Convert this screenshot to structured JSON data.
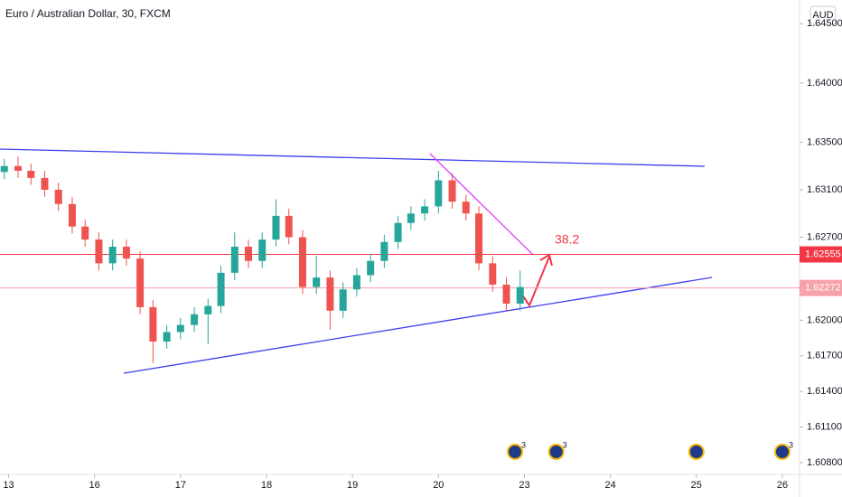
{
  "chart_data": {
    "type": "candlestick",
    "title": "Euro / Australian Dollar, 30, FXCM",
    "currency": "AUD",
    "x": [
      -0.05,
      0.11,
      0.26,
      0.42,
      0.58,
      0.74,
      0.89,
      1.05,
      1.21,
      1.37,
      1.53,
      1.68,
      1.84,
      2.0,
      2.16,
      2.32,
      2.47,
      2.63,
      2.79,
      2.95,
      3.11,
      3.26,
      3.42,
      3.58,
      3.74,
      3.89,
      4.05,
      4.21,
      4.37,
      4.53,
      4.68,
      4.84,
      5.0,
      5.16,
      5.32,
      5.47,
      5.63,
      5.79,
      5.95
    ],
    "open": [
      1.6325,
      1.633,
      1.6326,
      1.632,
      1.631,
      1.6298,
      1.6279,
      1.6268,
      1.6248,
      1.6262,
      1.6252,
      1.6211,
      1.6182,
      1.619,
      1.6196,
      1.6205,
      1.6212,
      1.624,
      1.6262,
      1.625,
      1.6268,
      1.6288,
      1.627,
      1.6228,
      1.6236,
      1.6208,
      1.6226,
      1.6238,
      1.625,
      1.6266,
      1.6282,
      1.629,
      1.6296,
      1.6318,
      1.63,
      1.629,
      1.6248,
      1.623,
      1.6214
    ],
    "high": [
      1.6336,
      1.6338,
      1.6332,
      1.6326,
      1.6316,
      1.6304,
      1.6285,
      1.6274,
      1.6268,
      1.6268,
      1.6258,
      1.6217,
      1.6196,
      1.6202,
      1.6211,
      1.6218,
      1.6246,
      1.6274,
      1.6268,
      1.6274,
      1.6302,
      1.6294,
      1.6276,
      1.6254,
      1.6242,
      1.6232,
      1.6244,
      1.6256,
      1.6272,
      1.6288,
      1.6296,
      1.6302,
      1.6326,
      1.6324,
      1.6306,
      1.6296,
      1.6254,
      1.6236,
      1.6242
    ],
    "low": [
      1.6319,
      1.632,
      1.6314,
      1.6304,
      1.6292,
      1.6273,
      1.6262,
      1.6242,
      1.6242,
      1.6246,
      1.6205,
      1.6164,
      1.6176,
      1.6184,
      1.619,
      1.618,
      1.6206,
      1.6234,
      1.6244,
      1.6244,
      1.6262,
      1.6264,
      1.6222,
      1.6222,
      1.6192,
      1.6202,
      1.622,
      1.6232,
      1.6244,
      1.626,
      1.6276,
      1.6284,
      1.629,
      1.6294,
      1.6284,
      1.6242,
      1.6224,
      1.6208,
      1.6208
    ],
    "close": [
      1.633,
      1.6326,
      1.632,
      1.631,
      1.6298,
      1.6279,
      1.6268,
      1.6248,
      1.6262,
      1.6252,
      1.6211,
      1.6182,
      1.619,
      1.6196,
      1.6205,
      1.6212,
      1.624,
      1.6262,
      1.625,
      1.6268,
      1.6288,
      1.627,
      1.6228,
      1.6236,
      1.6208,
      1.6226,
      1.6238,
      1.625,
      1.6266,
      1.6282,
      1.629,
      1.6296,
      1.6318,
      1.63,
      1.629,
      1.6248,
      1.623,
      1.6214,
      1.6228
    ],
    "up_color": "#26a69a",
    "down_color": "#ef5350",
    "xlim": [
      -0.1,
      9.2
    ],
    "xticks": [
      {
        "value": 0,
        "label": "13"
      },
      {
        "value": 1,
        "label": "16"
      },
      {
        "value": 2,
        "label": "17"
      },
      {
        "value": 3,
        "label": "18"
      },
      {
        "value": 4,
        "label": "19"
      },
      {
        "value": 5,
        "label": "20"
      },
      {
        "value": 6,
        "label": "23"
      },
      {
        "value": 7,
        "label": "24"
      },
      {
        "value": 8,
        "label": "25"
      },
      {
        "value": 9,
        "label": "26"
      }
    ],
    "ylim": [
      1.607,
      1.647
    ],
    "yticks": [
      {
        "value": 1.608,
        "label": "1.60800"
      },
      {
        "value": 1.611,
        "label": "1.61100"
      },
      {
        "value": 1.614,
        "label": "1.61400"
      },
      {
        "value": 1.617,
        "label": "1.61700"
      },
      {
        "value": 1.62,
        "label": "1.62000"
      },
      {
        "value": 1.627,
        "label": "1.62700"
      },
      {
        "value": 1.631,
        "label": "1.63100"
      },
      {
        "value": 1.635,
        "label": "1.63500"
      },
      {
        "value": 1.64,
        "label": "1.64000"
      },
      {
        "value": 1.645,
        "label": "1.64500"
      }
    ],
    "price_lines": [
      {
        "value": 1.62555,
        "color": "#f23645"
      },
      {
        "value": 1.62272,
        "color": "#f7a1a9"
      }
    ],
    "annotation": "38.2",
    "events": [
      {
        "x": 5.89,
        "label": "3"
      },
      {
        "x": 6.37,
        "label": "3"
      },
      {
        "x": 8.0
      },
      {
        "x": 9.0,
        "label": "3"
      }
    ]
  }
}
